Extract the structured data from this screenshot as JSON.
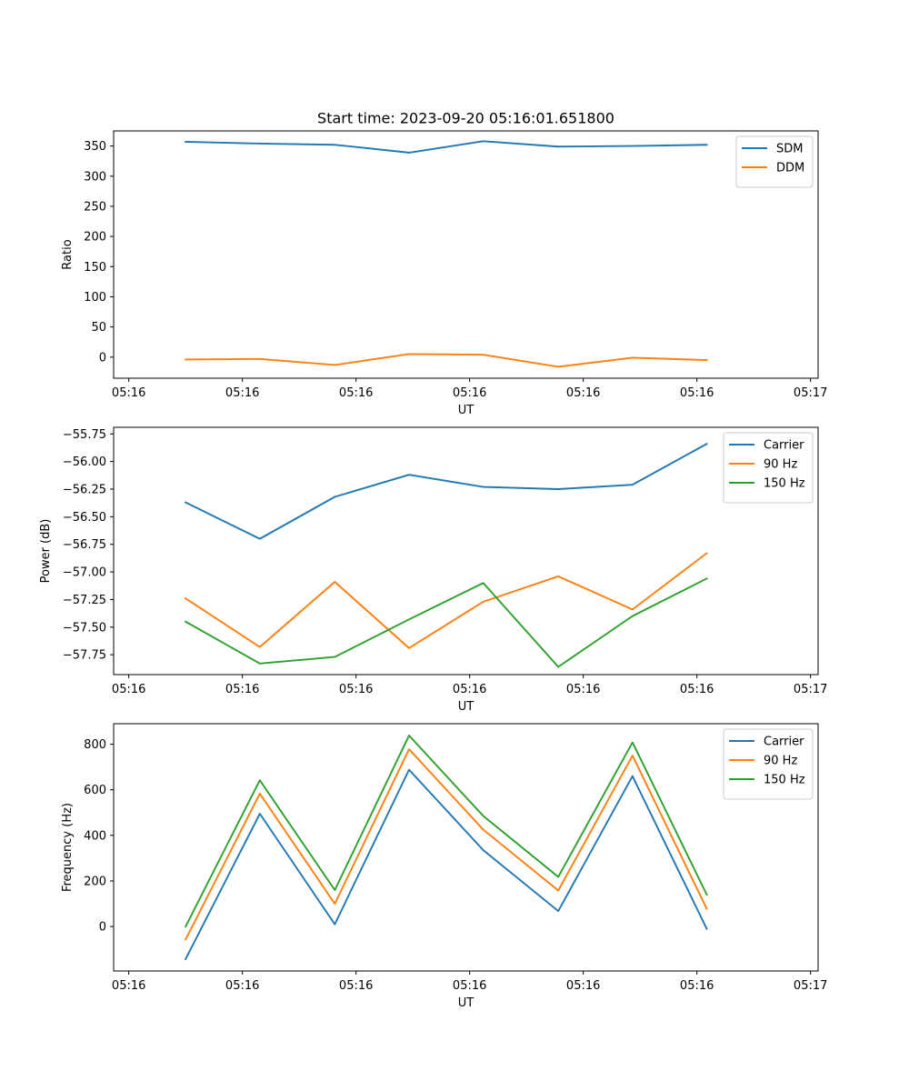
{
  "title": "Start time: 2023-09-20 05:16:01.651800",
  "colors": {
    "blue": "#1f77b4",
    "orange": "#ff7f0e",
    "green": "#2ca02c"
  },
  "chart_data": [
    {
      "type": "line",
      "title": "Start time: 2023-09-20 05:16:01.651800",
      "xlabel": "UT",
      "ylabel": "Ratio",
      "xlim": [
        -0.2,
        9.1
      ],
      "ylim": [
        -35,
        375
      ],
      "xticks": [
        0,
        1.5,
        3,
        4.5,
        6,
        7.5,
        9
      ],
      "xtick_labels": [
        "05:16",
        "05:16",
        "05:16",
        "05:16",
        "05:16",
        "05:16",
        "05:17"
      ],
      "yticks": [
        0,
        50,
        100,
        150,
        200,
        250,
        300,
        350
      ],
      "ytick_labels": [
        "0",
        "50",
        "100",
        "150",
        "200",
        "250",
        "300",
        "350"
      ],
      "x": [
        0.75,
        1.73,
        2.72,
        3.7,
        4.68,
        5.67,
        6.65,
        7.63
      ],
      "series": [
        {
          "name": "SDM",
          "color": "#1f77b4",
          "values": [
            357,
            354,
            352,
            339,
            358,
            349,
            350,
            352
          ]
        },
        {
          "name": "DDM",
          "color": "#ff7f0e",
          "values": [
            -4,
            -3,
            -13,
            5,
            4,
            -16,
            -1,
            -5
          ]
        }
      ],
      "legend": "top-right"
    },
    {
      "type": "line",
      "title": "",
      "xlabel": "UT",
      "ylabel": "Power (dB)",
      "xlim": [
        -0.2,
        9.1
      ],
      "ylim": [
        -57.93,
        -55.69
      ],
      "xticks": [
        0,
        1.5,
        3,
        4.5,
        6,
        7.5,
        9
      ],
      "xtick_labels": [
        "05:16",
        "05:16",
        "05:16",
        "05:16",
        "05:16",
        "05:16",
        "05:17"
      ],
      "yticks": [
        -57.75,
        -57.5,
        -57.25,
        -57.0,
        -56.75,
        -56.5,
        -56.25,
        -56.0,
        -55.75
      ],
      "ytick_labels": [
        "−57.75",
        "−57.50",
        "−57.25",
        "−57.00",
        "−56.75",
        "−56.50",
        "−56.25",
        "−56.00",
        "−55.75"
      ],
      "x": [
        0.75,
        1.73,
        2.72,
        3.7,
        4.68,
        5.67,
        6.65,
        7.63
      ],
      "series": [
        {
          "name": "Carrier",
          "color": "#1f77b4",
          "values": [
            -56.37,
            -56.7,
            -56.32,
            -56.12,
            -56.23,
            -56.25,
            -56.21,
            -55.84
          ]
        },
        {
          "name": "90 Hz",
          "color": "#ff7f0e",
          "values": [
            -57.24,
            -57.68,
            -57.09,
            -57.69,
            -57.27,
            -57.04,
            -57.34,
            -56.83
          ]
        },
        {
          "name": "150 Hz",
          "color": "#2ca02c",
          "values": [
            -57.45,
            -57.83,
            -57.77,
            -57.43,
            -57.1,
            -57.86,
            -57.4,
            -57.06
          ]
        }
      ],
      "legend": "top-right"
    },
    {
      "type": "line",
      "title": "",
      "xlabel": "UT",
      "ylabel": "Frequency (Hz)",
      "xlim": [
        -0.2,
        9.1
      ],
      "ylim": [
        -195,
        890
      ],
      "xticks": [
        0,
        1.5,
        3,
        4.5,
        6,
        7.5,
        9
      ],
      "xtick_labels": [
        "05:16",
        "05:16",
        "05:16",
        "05:16",
        "05:16",
        "05:16",
        "05:17"
      ],
      "yticks": [
        0,
        200,
        400,
        600,
        800
      ],
      "ytick_labels": [
        "0",
        "200",
        "400",
        "600",
        "800"
      ],
      "x": [
        0.75,
        1.73,
        2.72,
        3.7,
        4.68,
        5.67,
        6.65,
        7.63
      ],
      "series": [
        {
          "name": "Carrier",
          "color": "#1f77b4",
          "values": [
            -143,
            495,
            10,
            688,
            335,
            68,
            660,
            -10
          ]
        },
        {
          "name": "90 Hz",
          "color": "#ff7f0e",
          "values": [
            -57,
            583,
            100,
            778,
            425,
            158,
            750,
            78
          ]
        },
        {
          "name": "150 Hz",
          "color": "#2ca02c",
          "values": [
            0,
            642,
            160,
            838,
            485,
            218,
            808,
            140
          ]
        }
      ],
      "legend": "top-right"
    }
  ]
}
